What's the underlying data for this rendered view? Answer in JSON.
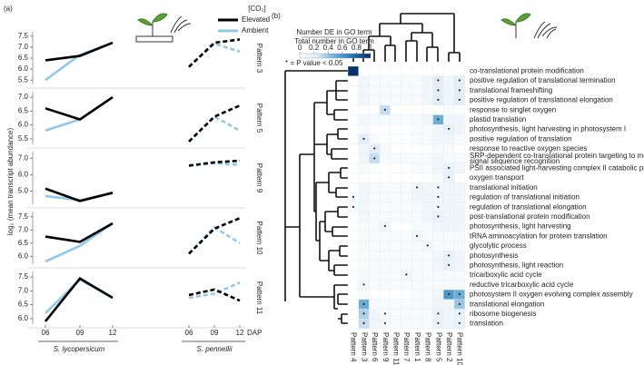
{
  "chart_data": [
    {
      "type": "line",
      "panel_label": "(a)",
      "y_label": "log₂ (mean transcript abundance)",
      "legend_title": "[CO₂]",
      "x_label": "DAP",
      "categories": [
        "06",
        "09",
        "12"
      ],
      "groups": [
        "S. lycopersicum",
        "S. pennellii"
      ],
      "dashed_groups": [
        false,
        true
      ],
      "series": [
        {
          "name": "Elevated",
          "color": "#000000"
        },
        {
          "name": "Ambient",
          "color": "#8ec8ec"
        }
      ],
      "panels": [
        {
          "title": "Pattern 3",
          "ylim": [
            5.3,
            7.7
          ],
          "yticks": [
            5.5,
            {
              "value": 6,
              "label": "6.0"
            },
            6.5,
            {
              "value": 7,
              "label": "7.0"
            },
            7.5
          ],
          "values": [
            [
              [
                6.4,
                6.6,
                7.2
              ],
              [
                5.5,
                6.65,
                7.2
              ]
            ],
            [
              [
                6.1,
                7.2,
                7.35
              ],
              [
                6.1,
                7.15,
                6.8
              ]
            ]
          ]
        },
        {
          "title": "Pattern 5",
          "ylim": [
            5.3,
            7.2
          ],
          "yticks": [
            5.5,
            {
              "value": 6,
              "label": "6.0"
            },
            6.5,
            {
              "value": 7,
              "label": "7.0"
            }
          ],
          "values": [
            [
              [
                6.6,
                6.2,
                7.0
              ],
              [
                5.8,
                6.2,
                7.0
              ]
            ],
            [
              [
                5.4,
                6.3,
                6.7
              ],
              [
                5.4,
                6.3,
                5.8
              ]
            ]
          ]
        },
        {
          "title": "Pattern 9",
          "ylim": [
            4.2,
            7.4
          ],
          "yticks": [
            {
              "value": 5,
              "label": "5.0"
            },
            {
              "value": 6,
              "label": "6.0"
            },
            {
              "value": 7,
              "label": "7.0"
            }
          ],
          "values": [
            [
              [
                5.15,
                4.4,
                4.9
              ],
              [
                4.7,
                4.45,
                4.9
              ]
            ],
            [
              [
                6.55,
                6.75,
                6.85
              ],
              [
                6.55,
                6.7,
                6.6
              ]
            ]
          ]
        },
        {
          "title": "Pattern 10",
          "ylim": [
            5.7,
            7.7
          ],
          "yticks": [
            {
              "value": 6,
              "label": "6.0"
            },
            6.5,
            {
              "value": 7,
              "label": "7.0"
            },
            7.5
          ],
          "values": [
            [
              [
                6.75,
                6.55,
                7.25
              ],
              [
                5.8,
                6.4,
                7.25
              ]
            ],
            [
              [
                6.1,
                7.05,
                7.45
              ],
              [
                6.1,
                7.1,
                6.5
              ]
            ]
          ]
        },
        {
          "title": "Pattern 11",
          "ylim": [
            5.8,
            7.7
          ],
          "yticks": [
            {
              "value": 6,
              "label": "6.0"
            },
            6.5,
            {
              "value": 7,
              "label": "7.0"
            },
            7.5
          ],
          "values": [
            [
              [
                5.9,
                7.45,
                6.75
              ],
              [
                6.2,
                7.4,
                6.75
              ]
            ],
            [
              [
                6.85,
                7.05,
                6.65
              ],
              [
                6.75,
                6.9,
                7.3
              ]
            ]
          ]
        }
      ]
    },
    {
      "type": "heatmap",
      "panel_label": "(b)",
      "colorbar_label_top": "Number DE in GO term",
      "colorbar_label_bottom": "Total number in GO term",
      "colorbar_range": [
        0,
        1
      ],
      "colorbar_ticks": [
        0,
        0.2,
        0.4,
        0.6,
        0.8,
        1
      ],
      "significance_note": "* = P value < 0.05",
      "colorscale": [
        "#ffffff",
        "#dbe9f6",
        "#6baed6",
        "#2171b5",
        "#08306b"
      ],
      "columns": [
        "Pattern 4",
        "Pattern 3",
        "Pattern 6",
        "Pattern 9",
        "Pattern 11",
        "Pattern 7",
        "Pattern 1",
        "Pattern 8",
        "Pattern 5",
        "Pattern 2",
        "Pattern 10"
      ],
      "rows": [
        "co-translational protein modification",
        "positive regulation of translational termination",
        "translational frameshifting",
        "positive regulation of translational elongation",
        "response to singlet oxygen",
        "plastid translation",
        "photosynthesis, light harvesting in photosystem I",
        "positive regulation of translation",
        "response to reactive oxygen species",
        [
          "SRP-dependent co-translational protein targeting to membrane,",
          "signal sequence recognition"
        ],
        "PSII associated light-harvesting complex II catabolic process",
        "oxygen transport",
        "translational initiation",
        "regulation of translational initiation",
        "regulation of translational elongation",
        "post-translational protein modification",
        "photosynthesis, light harvesting",
        "tRNA aminoacylation for protein translation",
        "glycolytic process",
        "photosynthesis",
        "photosynthesis, light reaction",
        "tricarboxylic acid cycle",
        "reductive tricarboxylic acid cycle",
        "photosystem II oxygen evolving complex assembly",
        "translational elongation",
        "ribosome biogenesis",
        "translation"
      ],
      "values": [
        [
          1,
          0,
          0,
          0,
          0,
          0,
          0,
          0,
          0,
          0,
          0
        ],
        [
          0,
          0.1,
          0.05,
          0.05,
          0.05,
          0.05,
          0.05,
          0.1,
          0.2,
          0.1,
          0.2
        ],
        [
          0,
          0.1,
          0.05,
          0.05,
          0.05,
          0.05,
          0.05,
          0.1,
          0.2,
          0.1,
          0.2
        ],
        [
          0,
          0.1,
          0.05,
          0.05,
          0.05,
          0.05,
          0.05,
          0.1,
          0.2,
          0.1,
          0.2
        ],
        [
          0,
          0,
          0,
          0.3,
          0,
          0,
          0,
          0,
          0,
          0.05,
          0
        ],
        [
          0,
          0.1,
          0.05,
          0.05,
          0.05,
          0.05,
          0.05,
          0.1,
          0.5,
          0.1,
          0.1
        ],
        [
          0,
          0.05,
          0,
          0,
          0,
          0,
          0.05,
          0.05,
          0.1,
          0.15,
          0.1
        ],
        [
          0,
          0.2,
          0.05,
          0,
          0,
          0,
          0.05,
          0.05,
          0.1,
          0.1,
          0.05
        ],
        [
          0,
          0.1,
          0.2,
          0.05,
          0,
          0,
          0,
          0,
          0.05,
          0.05,
          0
        ],
        [
          0,
          0.1,
          0.3,
          0.05,
          0.05,
          0.05,
          0.05,
          0.05,
          0.1,
          0.05,
          0.05
        ],
        [
          0,
          0.05,
          0,
          0,
          0,
          0,
          0.05,
          0.05,
          0.1,
          0.15,
          0.1
        ],
        [
          0,
          0,
          0,
          0,
          0,
          0,
          0,
          0,
          0.05,
          0.15,
          0
        ],
        [
          0,
          0.1,
          0.05,
          0.05,
          0.05,
          0.05,
          0.1,
          0.1,
          0.1,
          0.1,
          0.1
        ],
        [
          0.05,
          0.1,
          0.05,
          0.05,
          0.05,
          0.05,
          0.1,
          0.1,
          0.1,
          0.1,
          0.1
        ],
        [
          0.05,
          0.1,
          0.05,
          0.05,
          0.05,
          0.05,
          0.05,
          0.1,
          0.1,
          0.1,
          0.1
        ],
        [
          0,
          0.1,
          0.05,
          0.05,
          0.05,
          0.05,
          0.05,
          0.1,
          0.15,
          0.1,
          0.1
        ],
        [
          0,
          0.05,
          0.05,
          0.1,
          0,
          0,
          0.05,
          0.05,
          0.1,
          0.1,
          0.1
        ],
        [
          0,
          0.05,
          0.05,
          0.05,
          0.05,
          0.05,
          0.1,
          0.05,
          0.05,
          0.05,
          0.05
        ],
        [
          0,
          0.05,
          0.05,
          0.05,
          0.05,
          0.05,
          0.05,
          0.1,
          0.05,
          0.05,
          0.05
        ],
        [
          0,
          0.05,
          0.05,
          0.05,
          0.05,
          0.05,
          0.05,
          0.05,
          0.1,
          0.15,
          0.1
        ],
        [
          0,
          0.05,
          0.05,
          0.05,
          0.05,
          0.05,
          0.05,
          0.05,
          0.1,
          0.15,
          0.1
        ],
        [
          0,
          0.05,
          0.05,
          0.05,
          0.05,
          0.1,
          0.05,
          0.05,
          0.05,
          0.05,
          0.05
        ],
        [
          0,
          0.1,
          0.05,
          0.05,
          0.05,
          0.05,
          0.05,
          0.05,
          0.05,
          0.05,
          0.05
        ],
        [
          0,
          0.05,
          0,
          0,
          0,
          0,
          0.05,
          0.05,
          0.1,
          0.6,
          0.5
        ],
        [
          0,
          0.5,
          0.05,
          0.05,
          0.05,
          0.05,
          0.05,
          0.05,
          0.1,
          0.1,
          0.4
        ],
        [
          0,
          0.35,
          0.1,
          0.05,
          0.05,
          0.05,
          0.05,
          0.05,
          0.15,
          0.1,
          0.15
        ],
        [
          0,
          0.3,
          0.1,
          0.05,
          0.05,
          0.05,
          0.05,
          0.05,
          0.15,
          0.1,
          0.15
        ]
      ],
      "significant_columns": [
        [],
        [
          8,
          10
        ],
        [
          8,
          10
        ],
        [
          8,
          10
        ],
        [
          3
        ],
        [
          8
        ],
        [
          9
        ],
        [
          1
        ],
        [
          2
        ],
        [
          2
        ],
        [
          9
        ],
        [
          9
        ],
        [
          6,
          8
        ],
        [
          0,
          8
        ],
        [
          0,
          8
        ],
        [
          8
        ],
        [
          3
        ],
        [
          6
        ],
        [
          7
        ],
        [
          9
        ],
        [
          9
        ],
        [
          5
        ],
        [
          1
        ],
        [
          9,
          10
        ],
        [
          1,
          10
        ],
        [
          1,
          3,
          8,
          10
        ],
        [
          1,
          3,
          8,
          10
        ]
      ]
    }
  ]
}
